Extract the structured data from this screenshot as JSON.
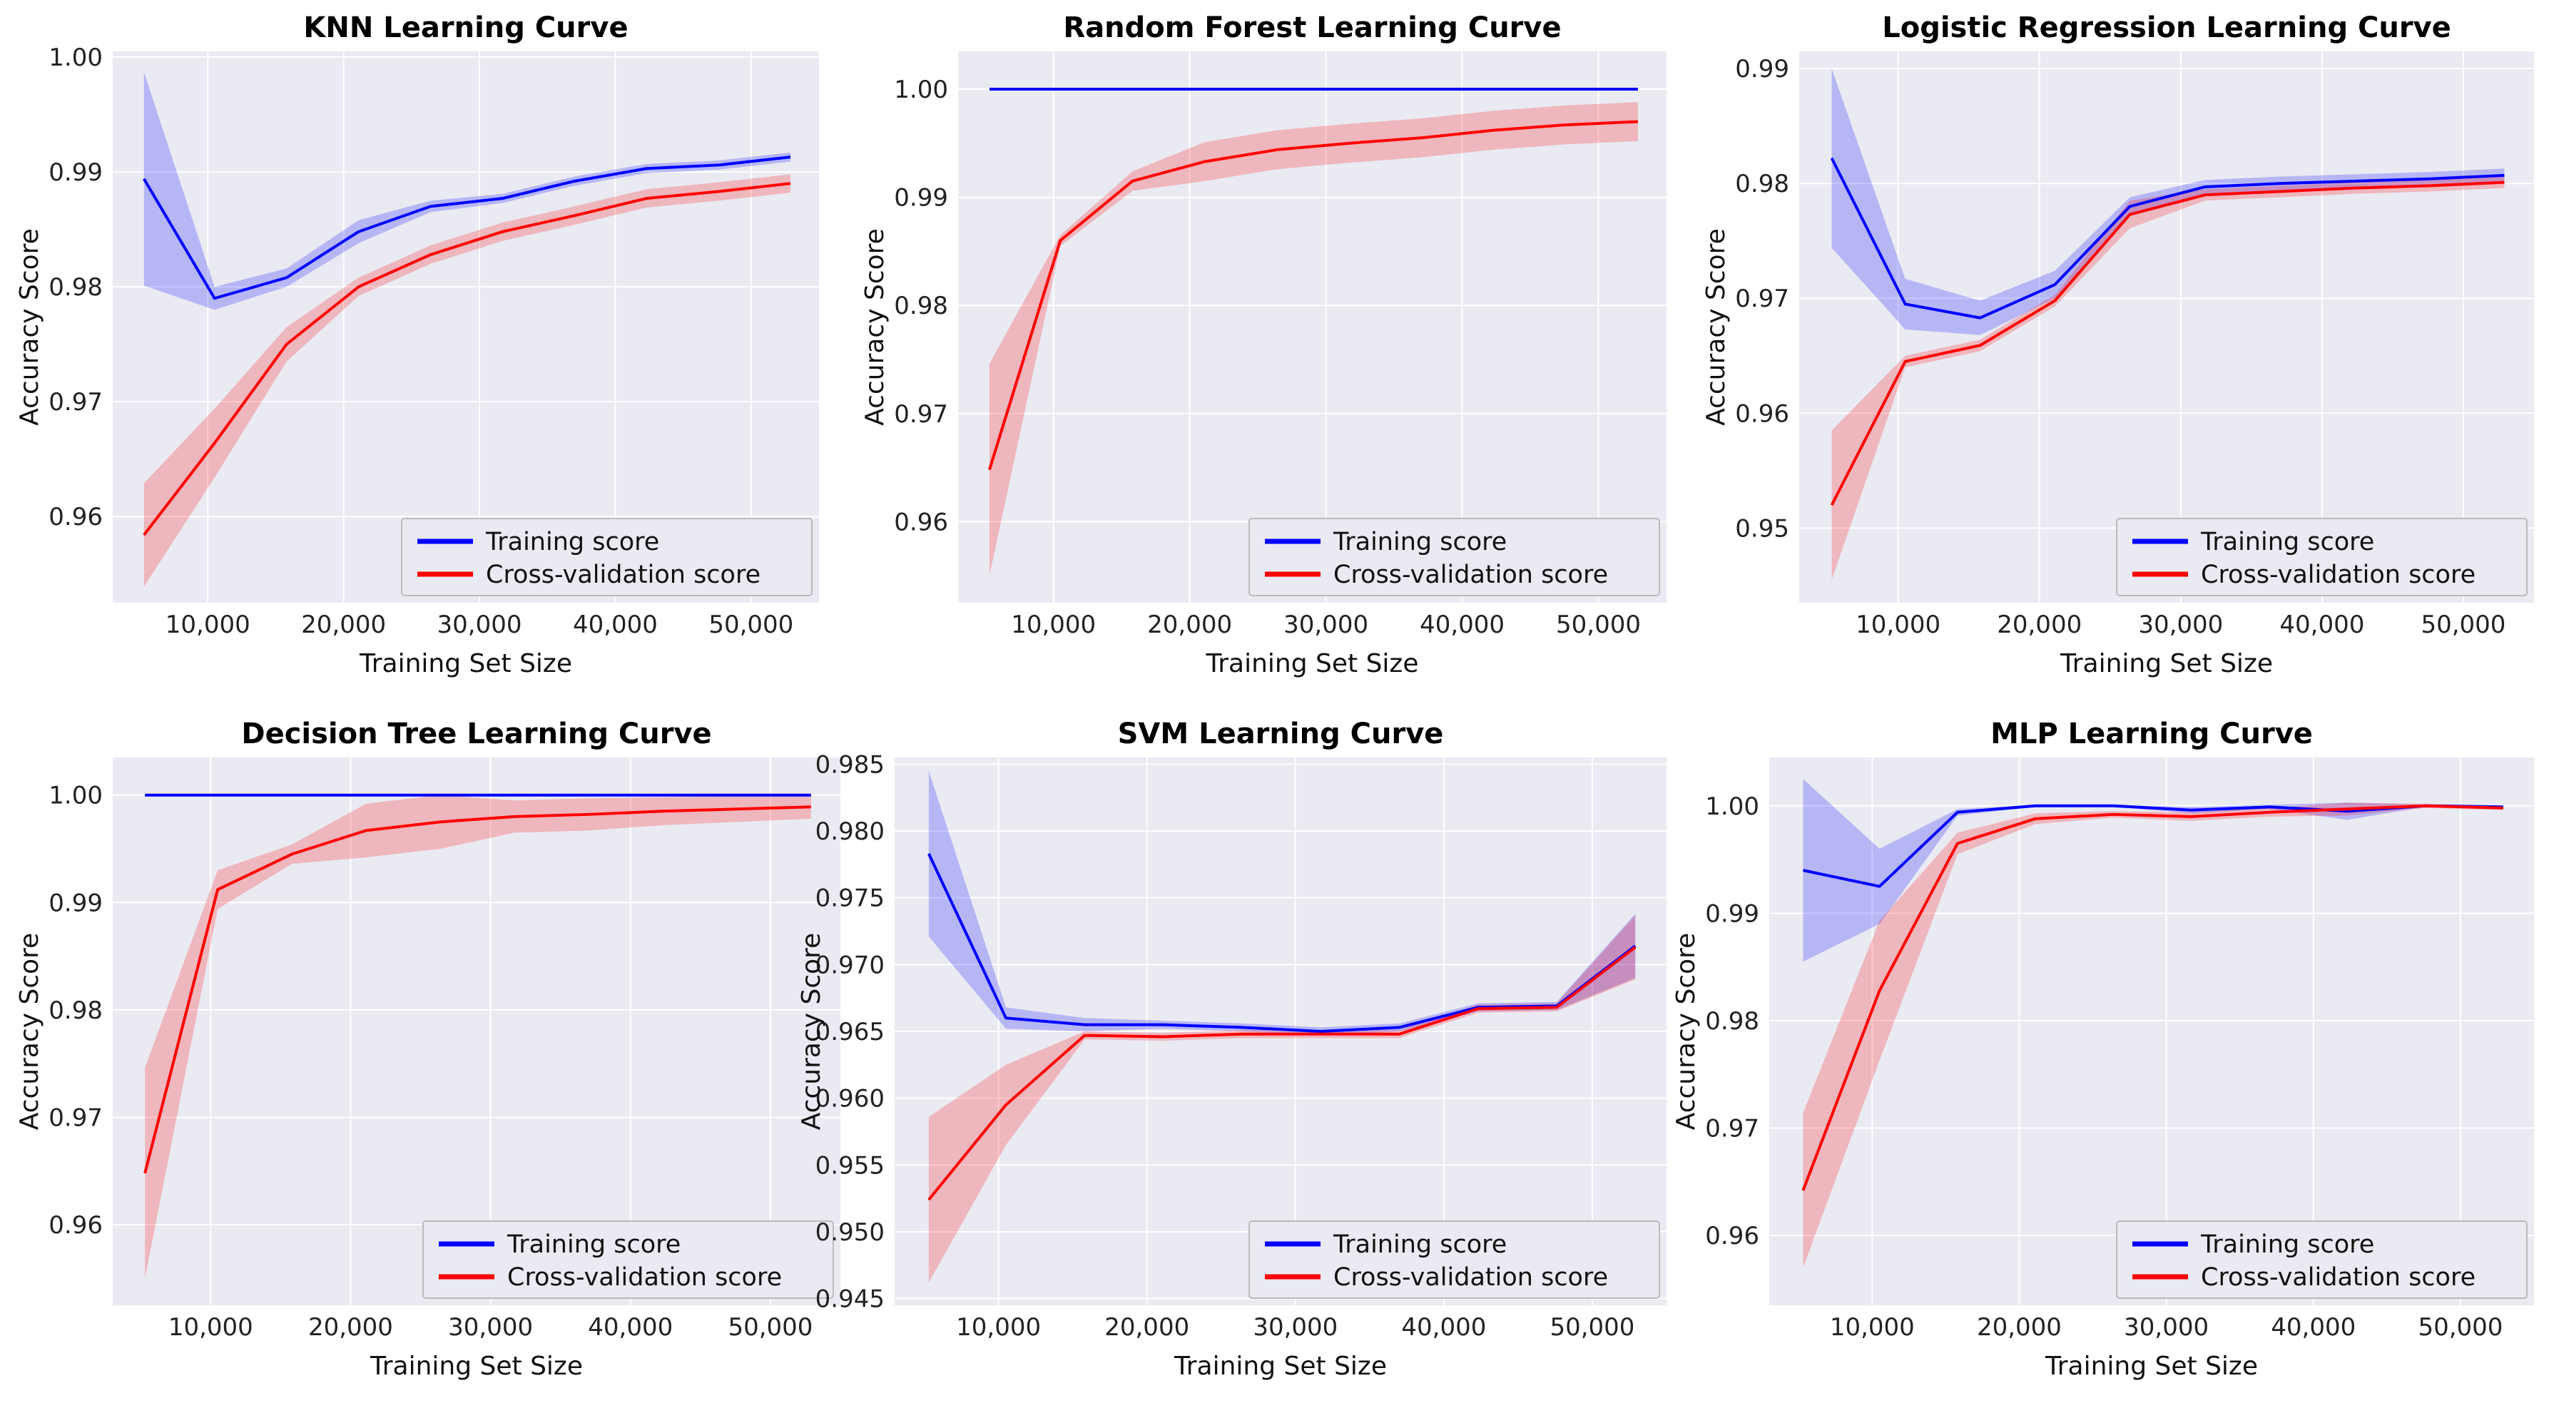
{
  "chart_data": [
    {
      "type": "line",
      "title": "KNN Learning Curve",
      "xlabel": "Training Set Size",
      "ylabel": "Accuracy Score",
      "xlim": [
        3000,
        55000
      ],
      "ylim": [
        0.9525,
        1.0005
      ],
      "xticks": [
        10000,
        20000,
        30000,
        40000,
        50000
      ],
      "xtick_labels": [
        "10,000",
        "20,000",
        "30,000",
        "40,000",
        "50,000"
      ],
      "yticks": [
        0.96,
        0.97,
        0.98,
        0.99,
        1.0
      ],
      "ytick_labels": [
        "0.96",
        "0.97",
        "0.98",
        "0.99",
        "1.00"
      ],
      "legend_loc": "lower-right",
      "x": [
        5300,
        10500,
        15800,
        21100,
        26400,
        31700,
        37000,
        42300,
        47600,
        52900
      ],
      "series": [
        {
          "name": "Training score",
          "color": "#0000ff",
          "values": [
            0.9894,
            0.979,
            0.9808,
            0.9848,
            0.987,
            0.9877,
            0.9892,
            0.9903,
            0.9906,
            0.9913
          ],
          "std": [
            0.0093,
            0.001,
            0.0008,
            0.001,
            0.0005,
            0.0004,
            0.0004,
            0.0004,
            0.0004,
            0.0004
          ]
        },
        {
          "name": "Cross-validation score",
          "color": "#ff0000",
          "values": [
            0.9584,
            0.9664,
            0.975,
            0.98,
            0.9828,
            0.9848,
            0.9862,
            0.9877,
            0.9883,
            0.989
          ],
          "std": [
            0.0045,
            0.003,
            0.0015,
            0.0008,
            0.0008,
            0.0008,
            0.0008,
            0.0008,
            0.0008,
            0.0008
          ]
        }
      ]
    },
    {
      "type": "line",
      "title": "Random Forest Learning Curve",
      "xlabel": "Training Set Size",
      "ylabel": "Accuracy Score",
      "xlim": [
        3000,
        55000
      ],
      "ylim": [
        0.9525,
        1.0035
      ],
      "xticks": [
        10000,
        20000,
        30000,
        40000,
        50000
      ],
      "xtick_labels": [
        "10,000",
        "20,000",
        "30,000",
        "40,000",
        "50,000"
      ],
      "yticks": [
        0.96,
        0.97,
        0.98,
        0.99,
        1.0
      ],
      "ytick_labels": [
        "0.96",
        "0.97",
        "0.98",
        "0.99",
        "1.00"
      ],
      "legend_loc": "lower-right",
      "x": [
        5300,
        10500,
        15800,
        21100,
        26400,
        31700,
        37000,
        42300,
        47600,
        52900
      ],
      "series": [
        {
          "name": "Training score",
          "color": "#0000ff",
          "values": [
            1.0,
            1.0,
            1.0,
            1.0,
            1.0,
            1.0,
            1.0,
            1.0,
            1.0,
            1.0
          ],
          "std": [
            0,
            0,
            0,
            0,
            0,
            0,
            0,
            0,
            0,
            0
          ]
        },
        {
          "name": "Cross-validation score",
          "color": "#ff0000",
          "values": [
            0.9648,
            0.986,
            0.9915,
            0.9933,
            0.9944,
            0.995,
            0.9955,
            0.9962,
            0.9967,
            0.997
          ],
          "std": [
            0.0098,
            0.0005,
            0.0009,
            0.0018,
            0.0018,
            0.0018,
            0.0018,
            0.0018,
            0.0018,
            0.0018
          ]
        }
      ]
    },
    {
      "type": "line",
      "title": "Logistic Regression Learning Curve",
      "xlabel": "Training Set Size",
      "ylabel": "Accuracy Score",
      "xlim": [
        3000,
        55000
      ],
      "ylim": [
        0.9435,
        0.9915
      ],
      "xticks": [
        10000,
        20000,
        30000,
        40000,
        50000
      ],
      "xtick_labels": [
        "10,000",
        "20,000",
        "30,000",
        "40,000",
        "50,000"
      ],
      "yticks": [
        0.95,
        0.96,
        0.97,
        0.98,
        0.99
      ],
      "ytick_labels": [
        "0.95",
        "0.96",
        "0.97",
        "0.98",
        "0.99"
      ],
      "legend_loc": "lower-right",
      "x": [
        5300,
        10500,
        15800,
        21100,
        26400,
        31700,
        37000,
        42300,
        47600,
        52900
      ],
      "series": [
        {
          "name": "Training score",
          "color": "#0000ff",
          "values": [
            0.9822,
            0.9695,
            0.9683,
            0.9712,
            0.978,
            0.9797,
            0.98,
            0.9802,
            0.9804,
            0.9807
          ],
          "std": [
            0.0078,
            0.0022,
            0.0015,
            0.0012,
            0.0008,
            0.0006,
            0.0006,
            0.0006,
            0.0006,
            0.0006
          ]
        },
        {
          "name": "Cross-validation score",
          "color": "#ff0000",
          "values": [
            0.952,
            0.9645,
            0.9659,
            0.9698,
            0.9773,
            0.979,
            0.9793,
            0.9796,
            0.9798,
            0.9801
          ],
          "std": [
            0.0065,
            0.0005,
            0.0005,
            0.0005,
            0.0012,
            0.0005,
            0.0005,
            0.0005,
            0.0005,
            0.0005
          ]
        }
      ]
    },
    {
      "type": "line",
      "title": "Decision Tree Learning Curve",
      "xlabel": "Training Set Size",
      "ylabel": "Accuracy Score",
      "xlim": [
        3000,
        55000
      ],
      "ylim": [
        0.9525,
        1.0035
      ],
      "xticks": [
        10000,
        20000,
        30000,
        40000,
        50000
      ],
      "xtick_labels": [
        "10,000",
        "20,000",
        "30,000",
        "40,000",
        "50,000"
      ],
      "yticks": [
        0.96,
        0.97,
        0.98,
        0.99,
        1.0
      ],
      "ytick_labels": [
        "0.96",
        "0.97",
        "0.98",
        "0.99",
        "1.00"
      ],
      "legend_loc": "lower-right",
      "x": [
        5300,
        10500,
        15800,
        21100,
        26400,
        31700,
        37000,
        42300,
        47600,
        52900
      ],
      "series": [
        {
          "name": "Training score",
          "color": "#0000ff",
          "values": [
            1.0,
            1.0,
            1.0,
            1.0,
            1.0,
            1.0,
            1.0,
            1.0,
            1.0,
            1.0
          ],
          "std": [
            0,
            0,
            0,
            0,
            0,
            0,
            0,
            0,
            0,
            0
          ]
        },
        {
          "name": "Cross-validation score",
          "color": "#ff0000",
          "values": [
            0.9648,
            0.9912,
            0.9945,
            0.9967,
            0.9975,
            0.998,
            0.9982,
            0.9985,
            0.9987,
            0.9989
          ],
          "std": [
            0.0098,
            0.0018,
            0.0009,
            0.0025,
            0.0025,
            0.0015,
            0.0015,
            0.0013,
            0.0012,
            0.0011
          ]
        }
      ]
    },
    {
      "type": "line",
      "title": "SVM Learning Curve",
      "xlabel": "Training Set Size",
      "ylabel": "Accuracy Score",
      "xlim": [
        3000,
        55000
      ],
      "ylim": [
        0.9445,
        0.9855
      ],
      "xticks": [
        10000,
        20000,
        30000,
        40000,
        50000
      ],
      "xtick_labels": [
        "10,000",
        "20,000",
        "30,000",
        "40,000",
        "50,000"
      ],
      "yticks": [
        0.945,
        0.95,
        0.955,
        0.96,
        0.965,
        0.97,
        0.975,
        0.98,
        0.985
      ],
      "ytick_labels": [
        "0.945",
        "0.950",
        "0.955",
        "0.960",
        "0.965",
        "0.970",
        "0.975",
        "0.980",
        "0.985"
      ],
      "legend_loc": "lower-right",
      "x": [
        5300,
        10500,
        15800,
        21100,
        26400,
        31700,
        37000,
        42300,
        47600,
        52900
      ],
      "series": [
        {
          "name": "Training score",
          "color": "#0000ff",
          "values": [
            0.9783,
            0.966,
            0.9655,
            0.9655,
            0.9653,
            0.965,
            0.9653,
            0.9668,
            0.9669,
            0.9714
          ],
          "std": [
            0.0062,
            0.0008,
            0.0005,
            0.0003,
            0.0003,
            0.0003,
            0.0003,
            0.0003,
            0.0003,
            0.0024
          ]
        },
        {
          "name": "Cross-validation score",
          "color": "#ff0000",
          "values": [
            0.9524,
            0.9595,
            0.9647,
            0.9646,
            0.9648,
            0.9648,
            0.9648,
            0.9667,
            0.9668,
            0.9713
          ],
          "std": [
            0.0062,
            0.003,
            0.0003,
            0.0003,
            0.0003,
            0.0003,
            0.0003,
            0.0003,
            0.0003,
            0.0024
          ]
        }
      ]
    },
    {
      "type": "line",
      "title": "MLP Learning Curve",
      "xlabel": "Training Set Size",
      "ylabel": "Accuracy Score",
      "xlim": [
        3000,
        55000
      ],
      "ylim": [
        0.9535,
        1.0045
      ],
      "xticks": [
        10000,
        20000,
        30000,
        40000,
        50000
      ],
      "xtick_labels": [
        "10,000",
        "20,000",
        "30,000",
        "40,000",
        "50,000"
      ],
      "yticks": [
        0.96,
        0.97,
        0.98,
        0.99,
        1.0
      ],
      "ytick_labels": [
        "0.96",
        "0.97",
        "0.98",
        "0.99",
        "1.00"
      ],
      "legend_loc": "lower-right",
      "x": [
        5300,
        10500,
        15800,
        21100,
        26400,
        31700,
        37000,
        42300,
        47600,
        52900
      ],
      "series": [
        {
          "name": "Training score",
          "color": "#0000ff",
          "values": [
            0.994,
            0.9925,
            0.9994,
            1.0,
            1.0,
            0.9996,
            0.9999,
            0.9995,
            1.0,
            0.9999
          ],
          "std": [
            0.0085,
            0.0035,
            0.0003,
            0.0001,
            0.0001,
            0.0003,
            0.0002,
            0.0008,
            0.0001,
            0.0001
          ]
        },
        {
          "name": "Cross-validation score",
          "color": "#ff0000",
          "values": [
            0.9642,
            0.9828,
            0.9965,
            0.9988,
            0.9992,
            0.999,
            0.9994,
            0.9997,
            1.0,
            0.9998
          ],
          "std": [
            0.0072,
            0.0065,
            0.001,
            0.0005,
            0.0003,
            0.0004,
            0.0004,
            0.0006,
            0.0002,
            0.0002
          ]
        }
      ]
    }
  ]
}
